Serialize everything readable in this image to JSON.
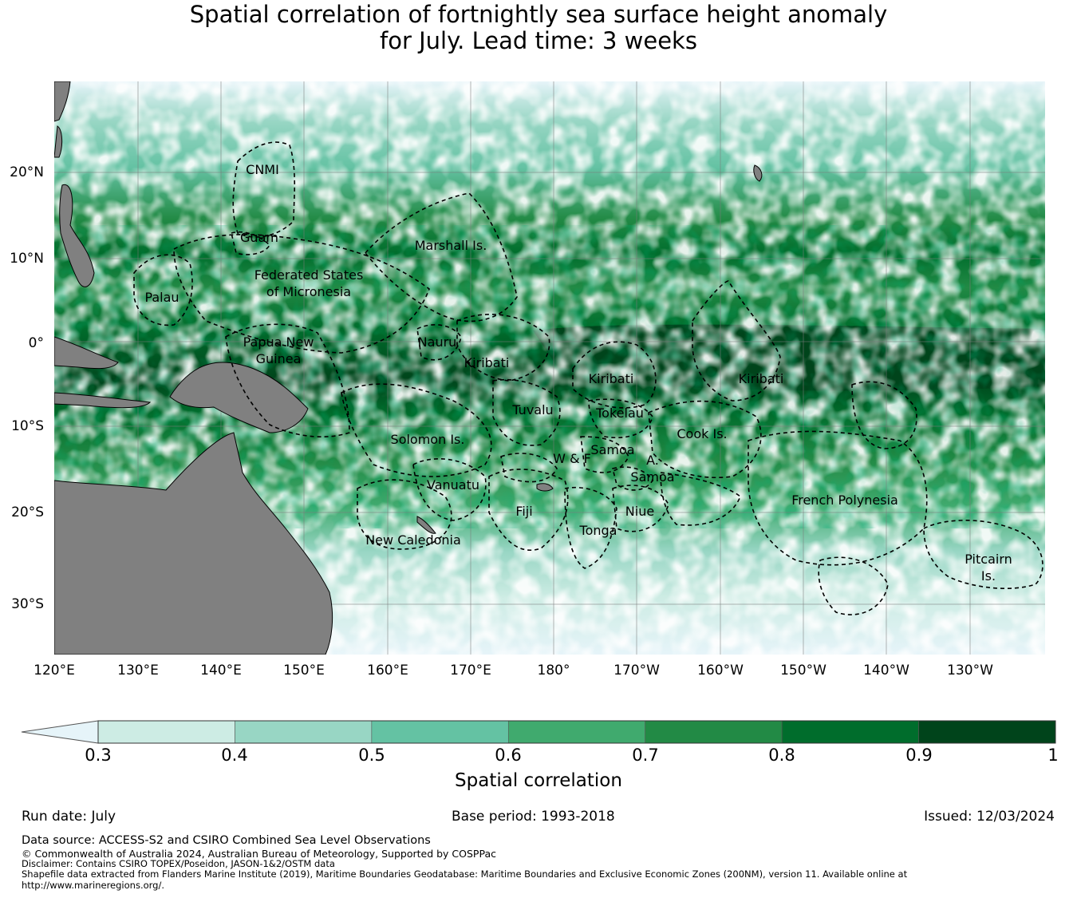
{
  "title": {
    "line1": "Spatial correlation of fortnightly sea surface height anomaly",
    "line2": "for July. Lead time: 3 weeks"
  },
  "map": {
    "lat_ticks": [
      "20°N",
      "10°N",
      "0°",
      "10°S",
      "20°S",
      "30°S"
    ],
    "lon_ticks": [
      "120°E",
      "130°E",
      "140°E",
      "150°E",
      "160°E",
      "170°E",
      "180°",
      "170°W",
      "160°W",
      "150°W",
      "140°W",
      "130°W"
    ],
    "regions": [
      {
        "id": "cnmi",
        "lines": [
          "CNMI"
        ]
      },
      {
        "id": "guam",
        "lines": [
          "Guam"
        ]
      },
      {
        "id": "marshall",
        "lines": [
          "Marshall Is."
        ]
      },
      {
        "id": "fsm",
        "lines": [
          "Federated States",
          "of Micronesia"
        ]
      },
      {
        "id": "palau",
        "lines": [
          "Palau"
        ]
      },
      {
        "id": "png",
        "lines": [
          "Papua New",
          "Guinea"
        ]
      },
      {
        "id": "nauru",
        "lines": [
          "Nauru"
        ]
      },
      {
        "id": "kiribati-w",
        "lines": [
          "Kiribati"
        ]
      },
      {
        "id": "kiribati-c",
        "lines": [
          "Kiribati"
        ]
      },
      {
        "id": "kiribati-e",
        "lines": [
          "Kiribati"
        ]
      },
      {
        "id": "tuvalu",
        "lines": [
          "Tuvalu"
        ]
      },
      {
        "id": "tokelau",
        "lines": [
          "Tokelau"
        ]
      },
      {
        "id": "solomon",
        "lines": [
          "Solomon Is."
        ]
      },
      {
        "id": "cook",
        "lines": [
          "Cook Is."
        ]
      },
      {
        "id": "samoa",
        "lines": [
          "Samoa"
        ]
      },
      {
        "id": "wf",
        "lines": [
          "W & F"
        ]
      },
      {
        "id": "asamoa-a",
        "lines": [
          "A."
        ]
      },
      {
        "id": "asamoa",
        "lines": [
          "Samoa"
        ]
      },
      {
        "id": "vanuatu",
        "lines": [
          "Vanuatu"
        ]
      },
      {
        "id": "fiji",
        "lines": [
          "Fiji"
        ]
      },
      {
        "id": "niue",
        "lines": [
          "Niue"
        ]
      },
      {
        "id": "tonga",
        "lines": [
          "Tonga"
        ]
      },
      {
        "id": "newcal",
        "lines": [
          "New Caledonia"
        ]
      },
      {
        "id": "frenchpoly",
        "lines": [
          "French Polynesia"
        ]
      },
      {
        "id": "pitcairn",
        "lines": [
          "Pitcairn",
          "Is."
        ]
      }
    ]
  },
  "colorbar": {
    "labels": [
      "0.3",
      "0.4",
      "0.5",
      "0.6",
      "0.7",
      "0.8",
      "0.9",
      "1"
    ],
    "colors": [
      "#cdece4",
      "#98d6c4",
      "#64c2a3",
      "#40aa6e",
      "#228a45",
      "#006d2c",
      "#00441b"
    ],
    "extend_color": "#e6f4f9",
    "title": "Spatial correlation"
  },
  "info": {
    "run_date": "Run date: July",
    "base_period": "Base period: 1993-2018",
    "issued": "Issued: 12/03/2024"
  },
  "footer": {
    "source": "Data source: ACCESS-S2 and CSIRO Combined Sea Level Observations",
    "copyright": "© Commonwealth of Australia 2024, Australian Bureau of Meteorology, Supported by COSPPac",
    "disclaimer": "Disclaimer: Contains CSIRO TOPEX/Poseidon, JASON-1&2/OSTM data",
    "shapefile1": "Shapefile data extracted from Flanders Marine Institute (2019), Maritime Boundaries Geodatabase: Maritime Boundaries and Exclusive Economic Zones (200NM), version 11. Available online at",
    "shapefile2": "http://www.marineregions.org/."
  }
}
